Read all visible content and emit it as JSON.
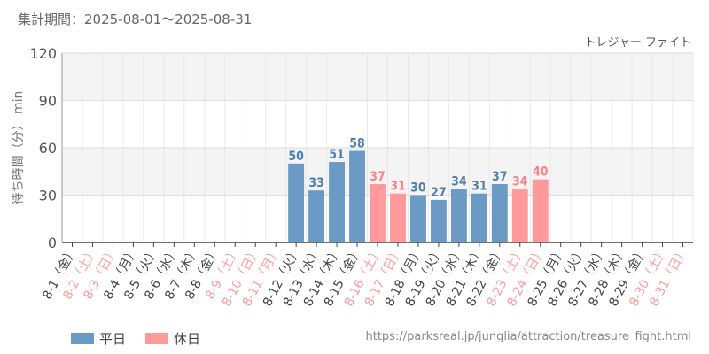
{
  "header": {
    "period": "集計期間：2025-08-01〜2025-08-31"
  },
  "chart_data": {
    "type": "bar",
    "title": "トレジャー ファイト",
    "ylabel": "待ち時間（分） min",
    "ylim": [
      0,
      120
    ],
    "yticks": [
      0,
      30,
      60,
      90,
      120
    ],
    "grid": true,
    "colors": {
      "weekday": "#6b9ac4",
      "holiday": "#ff9a9c",
      "weekday_label": "#4f7fae",
      "holiday_label": "#ff7f82"
    },
    "categories": [
      "8-1（金）",
      "8-2（土）",
      "8-3（日）",
      "8-4（月）",
      "8-5（火）",
      "8-6（水）",
      "8-7（木）",
      "8-8（金）",
      "8-9（土）",
      "8-10（日）",
      "8-11（月）",
      "8-12（火）",
      "8-13（水）",
      "8-14（木）",
      "8-15（金）",
      "8-16（土）",
      "8-17（日）",
      "8-18（月）",
      "8-19（火）",
      "8-20（水）",
      "8-21（木）",
      "8-22（金）",
      "8-23（土）",
      "8-24（日）",
      "8-25（月）",
      "8-26（火）",
      "8-27（水）",
      "8-28（木）",
      "8-29（金）",
      "8-30（土）",
      "8-31（日）"
    ],
    "holiday": [
      false,
      true,
      true,
      false,
      false,
      false,
      false,
      false,
      true,
      true,
      true,
      false,
      false,
      false,
      false,
      true,
      true,
      false,
      false,
      false,
      false,
      false,
      true,
      true,
      false,
      false,
      false,
      false,
      false,
      true,
      true
    ],
    "values": [
      null,
      null,
      null,
      null,
      null,
      null,
      null,
      null,
      null,
      null,
      null,
      50,
      33,
      51,
      58,
      37,
      31,
      30,
      27,
      34,
      31,
      37,
      34,
      40,
      null,
      null,
      null,
      null,
      null,
      null,
      null
    ],
    "legend": [
      {
        "label": "平日",
        "key": "weekday"
      },
      {
        "label": "休日",
        "key": "holiday"
      }
    ],
    "legend_position": "bottom-left"
  },
  "footer": {
    "url": "https://parksreal.jp/junglia/attraction/treasure_fight.html"
  }
}
